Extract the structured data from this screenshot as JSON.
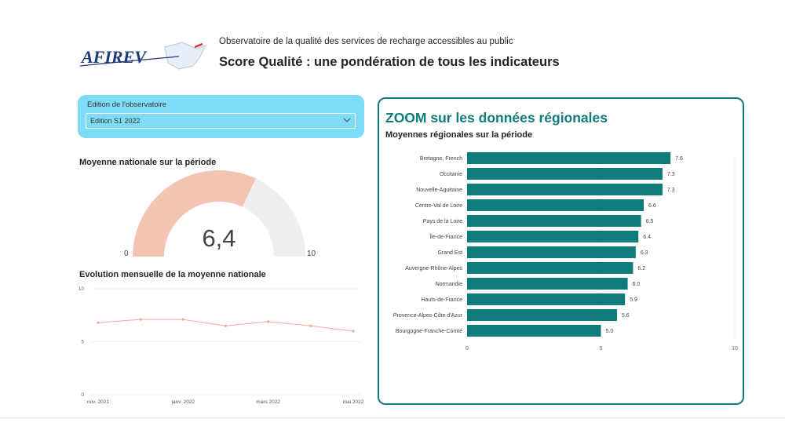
{
  "header": {
    "logo_text": "AFIREV",
    "subtitle": "Observatoire de la qualité des services de recharge accessibles au public",
    "title": "Score Qualité : une pondération de tous les indicateurs"
  },
  "slicer": {
    "label": "Edition de l'observatoire",
    "value": "Edition S1 2022"
  },
  "gauge": {
    "title": "Moyenne nationale sur la période",
    "value_label": "6,4",
    "min_label": "0",
    "max_label": "10",
    "value": 6.4,
    "min": 0,
    "max": 10
  },
  "colors": {
    "gauge_fill": "#f3c4b2",
    "gauge_track": "#f0efef",
    "line": "#f2a99a",
    "bar": "#0e7c7b",
    "slicer_bg": "#7fdcf6",
    "panel_border": "#0e7c7b"
  },
  "panel": {
    "title": "ZOOM sur les données régionales",
    "subtitle": "Moyennes régionales sur la période"
  },
  "chart_data": [
    {
      "type": "line",
      "title": "Evolution mensuelle de la moyenne nationale",
      "x_tick_labels": [
        "nov. 2021",
        "janv. 2022",
        "mars 2022",
        "mai 2022"
      ],
      "y_ticks": [
        0,
        5,
        10
      ],
      "ylim": [
        0,
        10
      ],
      "x": [
        "nov. 2021",
        "déc. 2021",
        "janv. 2022",
        "févr. 2022",
        "mars 2022",
        "avr. 2022",
        "mai 2022"
      ],
      "values": [
        6.8,
        7.1,
        7.1,
        6.5,
        6.9,
        6.5,
        6.0
      ]
    },
    {
      "type": "bar",
      "orientation": "horizontal",
      "categories": [
        "Bretagne, French",
        "Occitanie",
        "Nouvelle-Aquitaine",
        "Centre-Val de Loire",
        "Pays de la Loire",
        "Île-de-France",
        "Grand Est",
        "Auvergne-Rhône-Alpes",
        "Normandie",
        "Hauts-de-France",
        "Provence-Alpes-Côte d'Azur",
        "Bourgogne-Franche-Comté"
      ],
      "values": [
        7.6,
        7.3,
        7.3,
        6.6,
        6.5,
        6.4,
        6.3,
        6.2,
        6.0,
        5.9,
        5.6,
        5.0
      ],
      "value_labels": [
        "7.6",
        "7.3",
        "7.3",
        "6.6",
        "6.5",
        "6.4",
        "6.3",
        "6.2",
        "6.0",
        "5.9",
        "5.6",
        "5.0"
      ],
      "x_ticks": [
        0,
        5,
        10
      ],
      "xlim": [
        0,
        10
      ]
    }
  ]
}
